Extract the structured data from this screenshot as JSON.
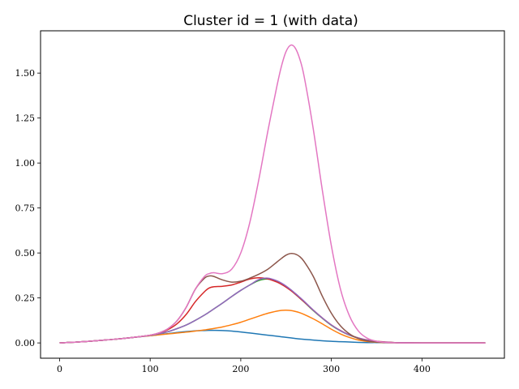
{
  "chart_data": {
    "type": "line",
    "title": "Cluster id = 1 (with data)",
    "xlabel": "",
    "ylabel": "",
    "xlim": [
      -21,
      491
    ],
    "ylim": [
      -0.085,
      1.735
    ],
    "xticks": [
      0,
      100,
      200,
      300,
      400
    ],
    "xtick_labels": [
      "0",
      "100",
      "200",
      "300",
      "400"
    ],
    "yticks": [
      0.0,
      0.25,
      0.5,
      0.75,
      1.0,
      1.25,
      1.5
    ],
    "ytick_labels": [
      "0.00",
      "0.25",
      "0.50",
      "0.75",
      "1.00",
      "1.25",
      "1.50"
    ],
    "grid": false,
    "legend": "none",
    "x": [
      0,
      20,
      40,
      60,
      80,
      100,
      110,
      120,
      130,
      140,
      150,
      160,
      165,
      170,
      180,
      190,
      200,
      210,
      220,
      230,
      240,
      245,
      250,
      255,
      260,
      265,
      270,
      280,
      290,
      300,
      310,
      320,
      330,
      340,
      350,
      360,
      370,
      380,
      400,
      430,
      470
    ],
    "series": [
      {
        "color": "#1f77b4",
        "values": [
          0.0,
          0.005,
          0.012,
          0.02,
          0.03,
          0.04,
          0.046,
          0.052,
          0.058,
          0.063,
          0.067,
          0.069,
          0.07,
          0.07,
          0.069,
          0.066,
          0.061,
          0.055,
          0.049,
          0.043,
          0.037,
          0.034,
          0.031,
          0.028,
          0.025,
          0.022,
          0.02,
          0.016,
          0.012,
          0.009,
          0.007,
          0.005,
          0.003,
          0.002,
          0.002,
          0.001,
          0.001,
          0.0,
          0.0,
          0.0,
          0.0
        ]
      },
      {
        "color": "#ff7f0e",
        "values": [
          0.0,
          0.005,
          0.012,
          0.02,
          0.03,
          0.04,
          0.045,
          0.05,
          0.055,
          0.06,
          0.066,
          0.072,
          0.076,
          0.08,
          0.089,
          0.101,
          0.115,
          0.132,
          0.149,
          0.165,
          0.177,
          0.181,
          0.182,
          0.18,
          0.175,
          0.168,
          0.158,
          0.134,
          0.106,
          0.076,
          0.05,
          0.03,
          0.016,
          0.008,
          0.004,
          0.002,
          0.001,
          0.0,
          0.0,
          0.0,
          0.0
        ]
      },
      {
        "color": "#2ca02c",
        "values": [
          0.0,
          0.005,
          0.012,
          0.02,
          0.03,
          0.042,
          0.051,
          0.063,
          0.08,
          0.1,
          0.126,
          0.155,
          0.171,
          0.188,
          0.222,
          0.258,
          0.292,
          0.322,
          0.347,
          0.355,
          0.341,
          0.328,
          0.312,
          0.293,
          0.272,
          0.25,
          0.227,
          0.18,
          0.137,
          0.098,
          0.067,
          0.043,
          0.026,
          0.015,
          0.008,
          0.004,
          0.002,
          0.001,
          0.0,
          0.0,
          0.0
        ]
      },
      {
        "color": "#d62728",
        "values": [
          0.0,
          0.005,
          0.012,
          0.02,
          0.03,
          0.043,
          0.055,
          0.075,
          0.108,
          0.16,
          0.23,
          0.285,
          0.305,
          0.312,
          0.315,
          0.322,
          0.338,
          0.355,
          0.362,
          0.356,
          0.338,
          0.325,
          0.31,
          0.292,
          0.272,
          0.25,
          0.228,
          0.182,
          0.139,
          0.1,
          0.069,
          0.044,
          0.027,
          0.016,
          0.009,
          0.005,
          0.002,
          0.001,
          0.0,
          0.0,
          0.0
        ]
      },
      {
        "color": "#9467bd",
        "values": [
          0.0,
          0.005,
          0.012,
          0.02,
          0.03,
          0.042,
          0.051,
          0.063,
          0.08,
          0.1,
          0.126,
          0.155,
          0.171,
          0.188,
          0.222,
          0.258,
          0.292,
          0.322,
          0.352,
          0.36,
          0.345,
          0.332,
          0.316,
          0.297,
          0.276,
          0.254,
          0.231,
          0.183,
          0.139,
          0.1,
          0.068,
          0.044,
          0.027,
          0.015,
          0.008,
          0.004,
          0.002,
          0.001,
          0.0,
          0.0,
          0.0
        ]
      },
      {
        "color": "#8c564b",
        "values": [
          0.0,
          0.005,
          0.012,
          0.02,
          0.03,
          0.043,
          0.056,
          0.08,
          0.125,
          0.2,
          0.3,
          0.36,
          0.372,
          0.37,
          0.35,
          0.338,
          0.343,
          0.36,
          0.382,
          0.41,
          0.45,
          0.47,
          0.488,
          0.497,
          0.494,
          0.48,
          0.452,
          0.37,
          0.26,
          0.165,
          0.095,
          0.05,
          0.024,
          0.011,
          0.005,
          0.002,
          0.001,
          0.0,
          0.0,
          0.0,
          0.0
        ]
      },
      {
        "color": "#e377c2",
        "values": [
          0.0,
          0.005,
          0.012,
          0.02,
          0.03,
          0.043,
          0.056,
          0.08,
          0.125,
          0.2,
          0.3,
          0.37,
          0.385,
          0.39,
          0.385,
          0.41,
          0.5,
          0.67,
          0.91,
          1.18,
          1.43,
          1.54,
          1.62,
          1.655,
          1.64,
          1.58,
          1.48,
          1.19,
          0.85,
          0.54,
          0.3,
          0.15,
          0.065,
          0.025,
          0.009,
          0.003,
          0.001,
          0.0,
          0.0,
          0.0,
          0.0
        ]
      }
    ]
  }
}
